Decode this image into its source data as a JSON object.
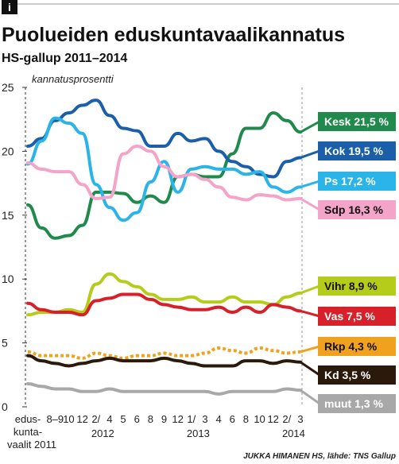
{
  "header": {
    "icon": "i"
  },
  "chart_data": {
    "type": "line",
    "title": "Puolueiden eduskuntavaalikannatus",
    "subtitle": "HS-gallup 2011–2014",
    "y_label": "kannatusprosentti",
    "source": "JUKKA HIMANEN HS, lähde: TNS Gallup",
    "categories": [
      "edus-\nkunta-\nvaalit 2011",
      null,
      "8–9",
      "10",
      "12",
      "2/",
      "4",
      "5",
      "6",
      "8",
      "9",
      "12",
      "1/",
      "3",
      "4",
      "6",
      "8",
      "10",
      "12",
      "2/",
      "3"
    ],
    "x_group_labels": [
      {
        "label": "2012",
        "categories": [
          5,
          6
        ]
      },
      {
        "label": "2013",
        "categories": [
          12,
          13
        ]
      },
      {
        "label": "2014",
        "categories": [
          19,
          20
        ]
      }
    ],
    "ylim": [
      0,
      25
    ],
    "yticks": [
      0,
      5,
      10,
      15,
      20,
      25
    ],
    "series": [
      {
        "name": "Kesk",
        "label": "Kesk 21,5 %",
        "color": "#1f8a4c",
        "text_color": "#ffffff",
        "values": [
          15.8,
          14.0,
          13.2,
          13.4,
          14.2,
          16.8,
          16.8,
          16.7,
          16.0,
          16.5,
          16.0,
          18.0,
          18.2,
          18.0,
          18.0,
          19.8,
          21.8,
          21.8,
          23.0,
          22.4,
          21.5
        ]
      },
      {
        "name": "Kok",
        "label": "Kok 19,5 %",
        "color": "#1b5faa",
        "text_color": "#ffffff",
        "values": [
          20.4,
          21.0,
          22.4,
          23.0,
          23.6,
          24.0,
          22.8,
          21.8,
          21.6,
          20.4,
          20.4,
          21.4,
          20.8,
          21.0,
          20.0,
          19.2,
          18.8,
          18.2,
          18.0,
          19.2,
          19.5
        ]
      },
      {
        "name": "Ps",
        "label": "Ps 17,2 %",
        "color": "#2ab4e8",
        "text_color": "#ffffff",
        "values": [
          19.0,
          20.8,
          22.6,
          22.2,
          21.4,
          17.4,
          15.6,
          14.6,
          15.2,
          17.6,
          19.2,
          16.8,
          18.6,
          18.8,
          18.6,
          18.6,
          18.2,
          18.4,
          17.2,
          16.8,
          17.2
        ]
      },
      {
        "name": "Sdp",
        "label": "Sdp 16,3 %",
        "color": "#f4a3c9",
        "text_color": "#111111",
        "values": [
          19.1,
          18.6,
          18.4,
          18.4,
          17.4,
          16.3,
          16.4,
          19.8,
          20.4,
          20.0,
          18.8,
          18.0,
          18.2,
          17.8,
          17.2,
          16.4,
          16.2,
          16.6,
          16.5,
          16.2,
          16.3
        ]
      },
      {
        "name": "Vihr",
        "label": "Vihr 8,9 %",
        "color": "#b6cc1a",
        "text_color": "#111111",
        "values": [
          7.2,
          7.4,
          7.4,
          7.6,
          7.4,
          9.6,
          10.4,
          9.8,
          9.4,
          8.8,
          8.4,
          8.4,
          8.6,
          8.2,
          8.2,
          8.6,
          8.2,
          8.2,
          8.0,
          8.6,
          8.9
        ]
      },
      {
        "name": "Vas",
        "label": "Vas 7,5 %",
        "color": "#d7202a",
        "text_color": "#ffffff",
        "values": [
          8.1,
          7.6,
          7.4,
          7.4,
          7.2,
          8.3,
          8.5,
          8.8,
          8.8,
          8.4,
          8.0,
          7.8,
          7.6,
          7.6,
          7.8,
          7.4,
          7.8,
          7.4,
          8.0,
          7.8,
          7.5
        ]
      },
      {
        "name": "Rkp",
        "label": "Rkp 4,3 %",
        "color": "#f0a21e",
        "text_color": "#111111",
        "dashed": true,
        "values": [
          4.3,
          4.0,
          4.0,
          4.0,
          3.8,
          4.2,
          4.0,
          3.8,
          4.0,
          4.0,
          4.2,
          4.0,
          4.0,
          4.2,
          4.6,
          4.4,
          4.2,
          4.6,
          4.4,
          4.2,
          4.3
        ]
      },
      {
        "name": "Kd",
        "label": "Kd 3,5 %",
        "color": "#2b1a0c",
        "text_color": "#ffffff",
        "values": [
          4.0,
          3.6,
          3.4,
          3.2,
          3.4,
          3.6,
          3.8,
          3.6,
          3.6,
          3.6,
          3.8,
          3.6,
          3.4,
          3.2,
          3.2,
          3.2,
          3.6,
          3.6,
          3.4,
          3.6,
          3.5
        ]
      },
      {
        "name": "muut",
        "label": "muut 1,3 %",
        "color": "#a8a8a8",
        "text_color": "#ffffff",
        "values": [
          1.8,
          1.6,
          1.4,
          1.4,
          1.2,
          1.2,
          1.4,
          1.2,
          1.2,
          1.2,
          1.2,
          1.2,
          1.2,
          1.2,
          1.0,
          1.2,
          1.2,
          1.2,
          1.2,
          1.4,
          1.3
        ]
      }
    ]
  }
}
